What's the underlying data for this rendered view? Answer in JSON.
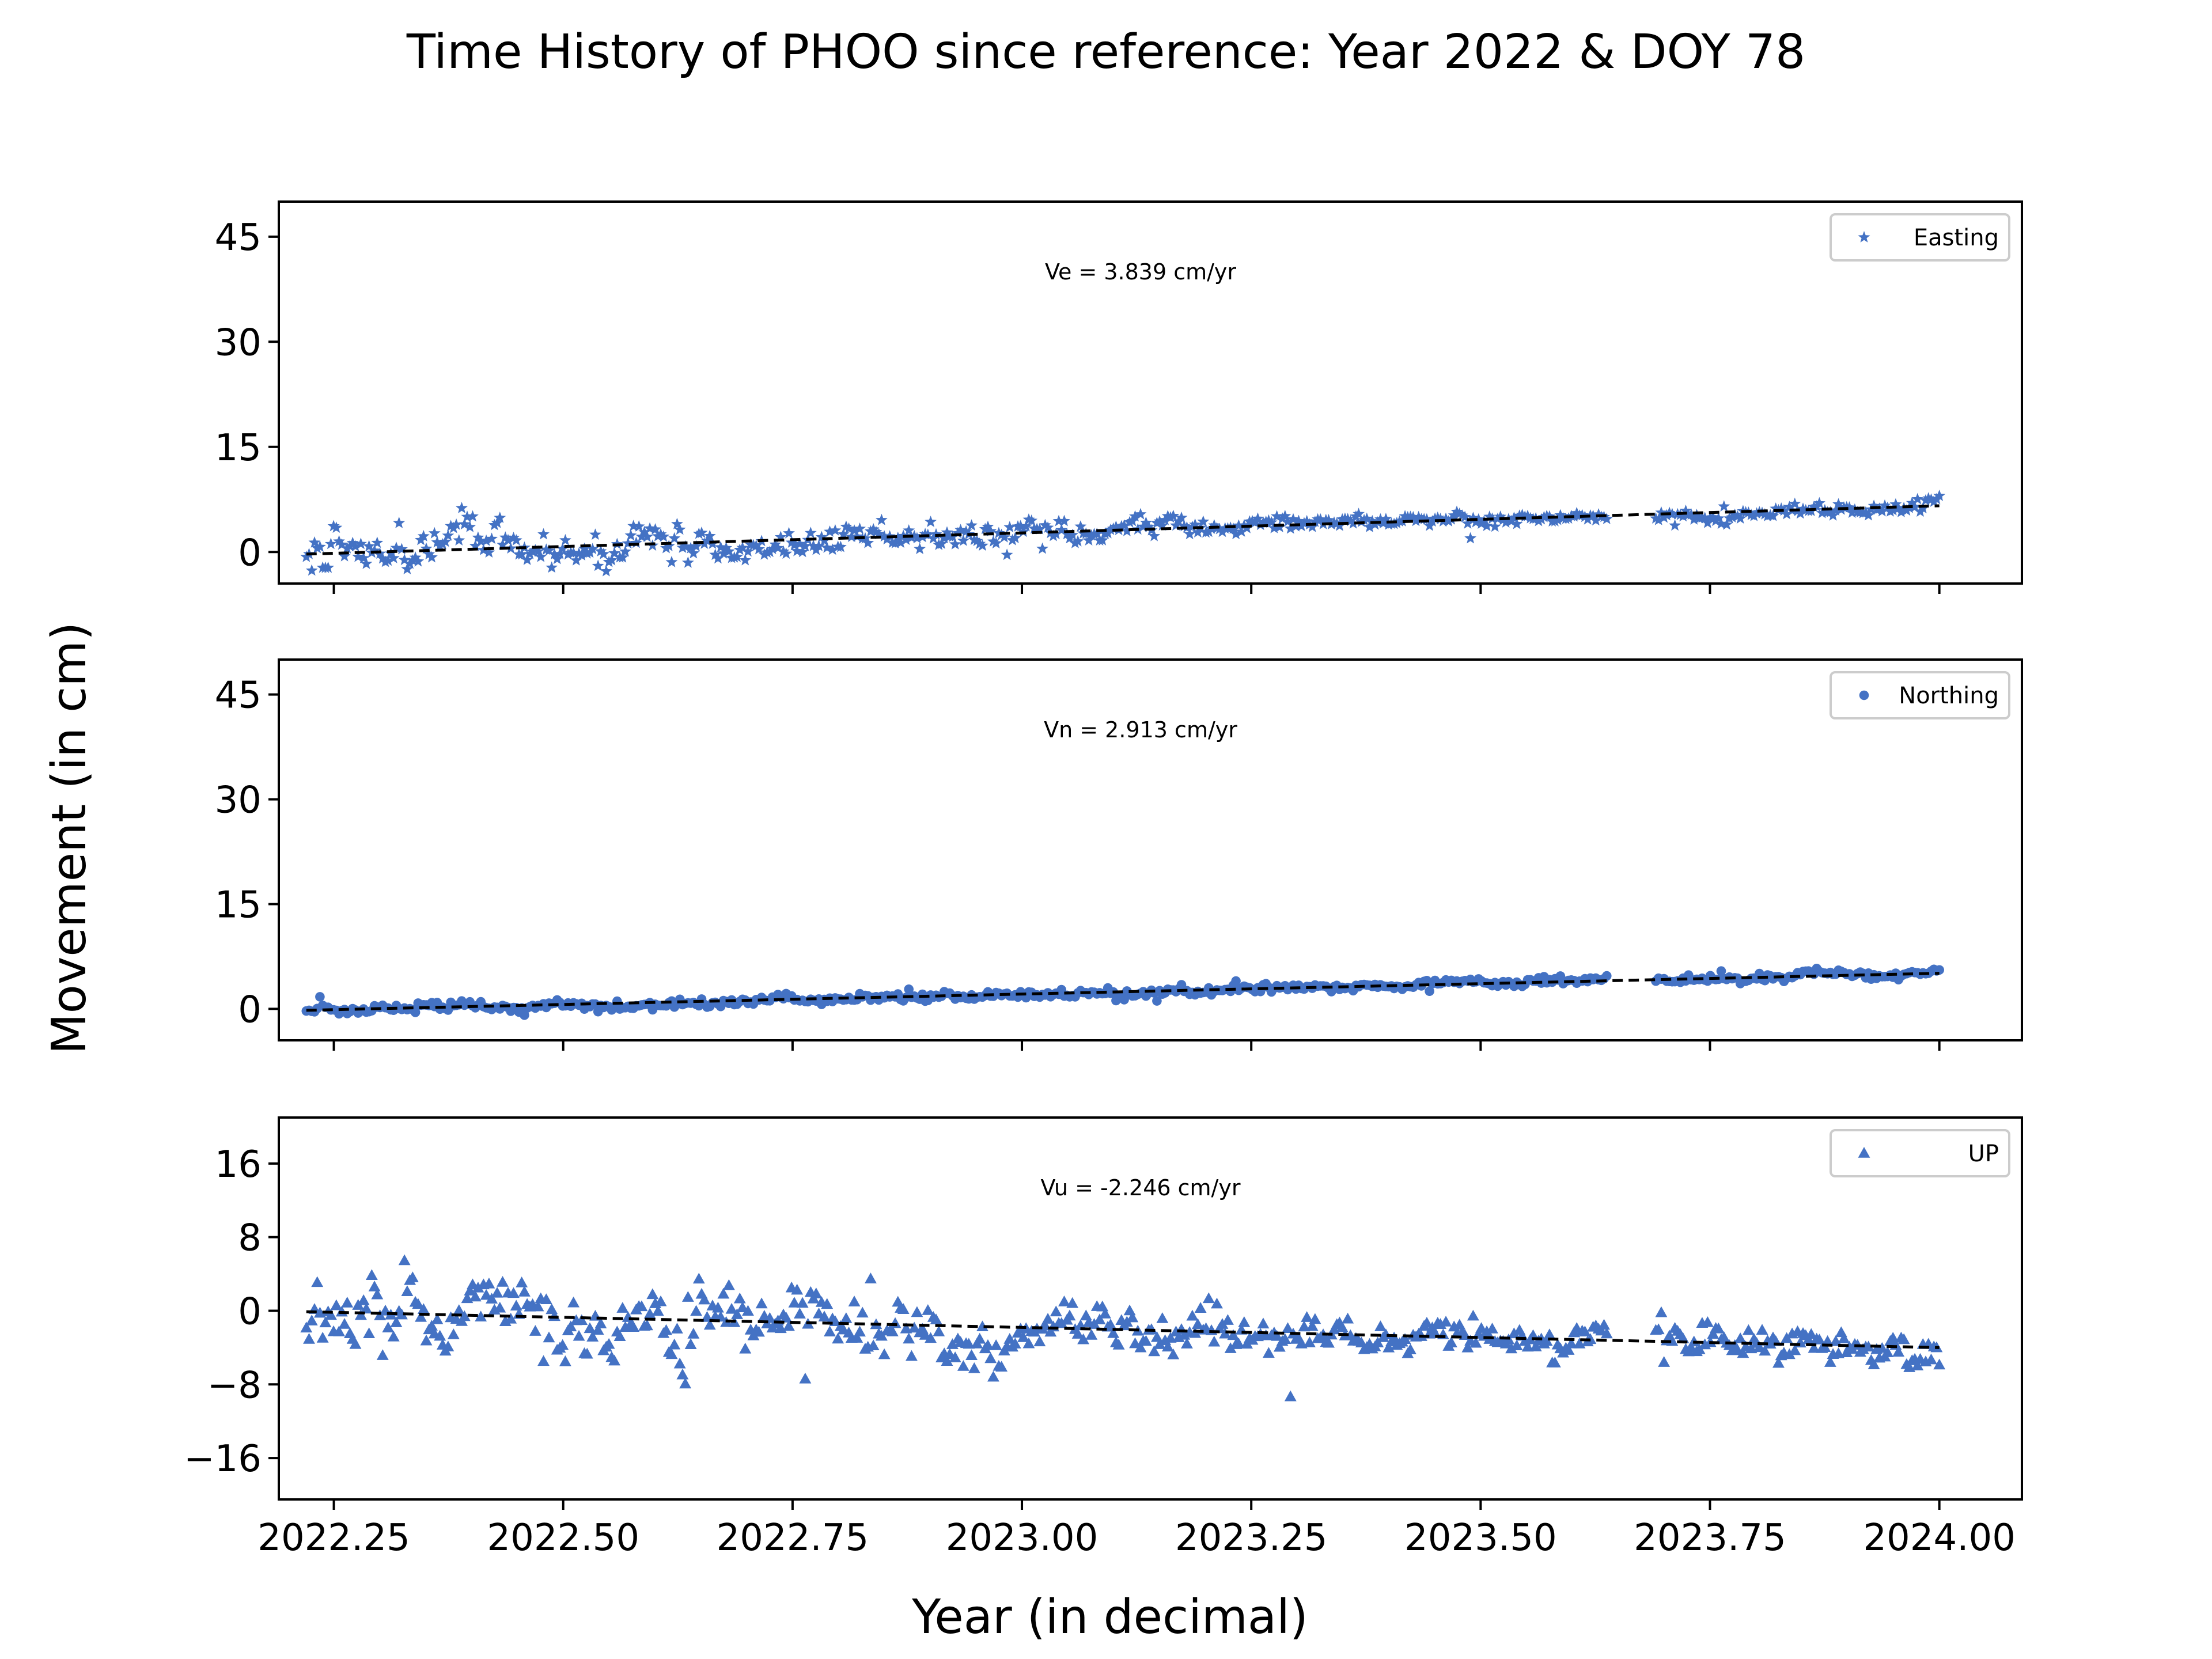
{
  "figure": {
    "title": "Time History of PHOO since reference: Year 2022 & DOY 78",
    "ylabel": "Movement (in cm)",
    "xlabel": "Year (in decimal)",
    "series_color": "#4472C4",
    "fit_line_color": "#000000"
  },
  "chart_data": [
    {
      "type": "scatter",
      "series": [
        {
          "name": "Easting",
          "marker": "star-icon"
        }
      ],
      "velocity_label": "Ve =  3.839 cm/yr",
      "xlim": [
        2022.19,
        2024.09
      ],
      "ylim": [
        -4.5,
        50
      ],
      "yticks": [
        0,
        15,
        30,
        45
      ],
      "ytick_labels": [
        "0",
        "15",
        "30",
        "45"
      ],
      "x_tick_labels_visible": false,
      "fit": {
        "x0": 2022.22,
        "y0": -0.3,
        "x1": 2024.0,
        "y1": 6.6
      },
      "gap": [
        2023.64,
        2023.69
      ],
      "noise": {
        "early": 1.8,
        "late": 0.55
      },
      "approx_points": 600,
      "legend": "top-right",
      "grid": false
    },
    {
      "type": "scatter",
      "series": [
        {
          "name": "Northing",
          "marker": "circle-icon"
        }
      ],
      "velocity_label": "Vn =  2.913 cm/yr",
      "xlim": [
        2022.19,
        2024.09
      ],
      "ylim": [
        -4.5,
        50
      ],
      "yticks": [
        0,
        15,
        30,
        45
      ],
      "ytick_labels": [
        "0",
        "15",
        "30",
        "45"
      ],
      "x_tick_labels_visible": false,
      "fit": {
        "x0": 2022.22,
        "y0": -0.2,
        "x1": 2024.0,
        "y1": 5.1
      },
      "gap": [
        2023.64,
        2023.69
      ],
      "noise": {
        "early": 0.45,
        "late": 0.35
      },
      "approx_points": 600,
      "legend": "top-right",
      "grid": false
    },
    {
      "type": "scatter",
      "series": [
        {
          "name": "UP",
          "marker": "triangle-icon"
        }
      ],
      "velocity_label": "Vu = -2.246 cm/yr",
      "xlim": [
        2022.19,
        2024.09
      ],
      "ylim": [
        -20.5,
        21
      ],
      "yticks": [
        -16,
        -8,
        0,
        8,
        16
      ],
      "ytick_labels": [
        "−16",
        "−8",
        "0",
        "8",
        "16"
      ],
      "x_tick_labels_visible": true,
      "xticks": [
        2022.25,
        2022.5,
        2022.75,
        2023.0,
        2023.25,
        2023.5,
        2023.75,
        2024.0
      ],
      "xtick_labels": [
        "2022.25",
        "2022.50",
        "2022.75",
        "2023.00",
        "2023.25",
        "2023.50",
        "2023.75",
        "2024.00"
      ],
      "fit": {
        "x0": 2022.22,
        "y0": -0.1,
        "x1": 2024.0,
        "y1": -4.0
      },
      "gap": [
        2023.64,
        2023.69
      ],
      "noise": {
        "early": 2.6,
        "late": 1.1
      },
      "approx_points": 600,
      "legend": "top-right",
      "grid": false
    }
  ]
}
